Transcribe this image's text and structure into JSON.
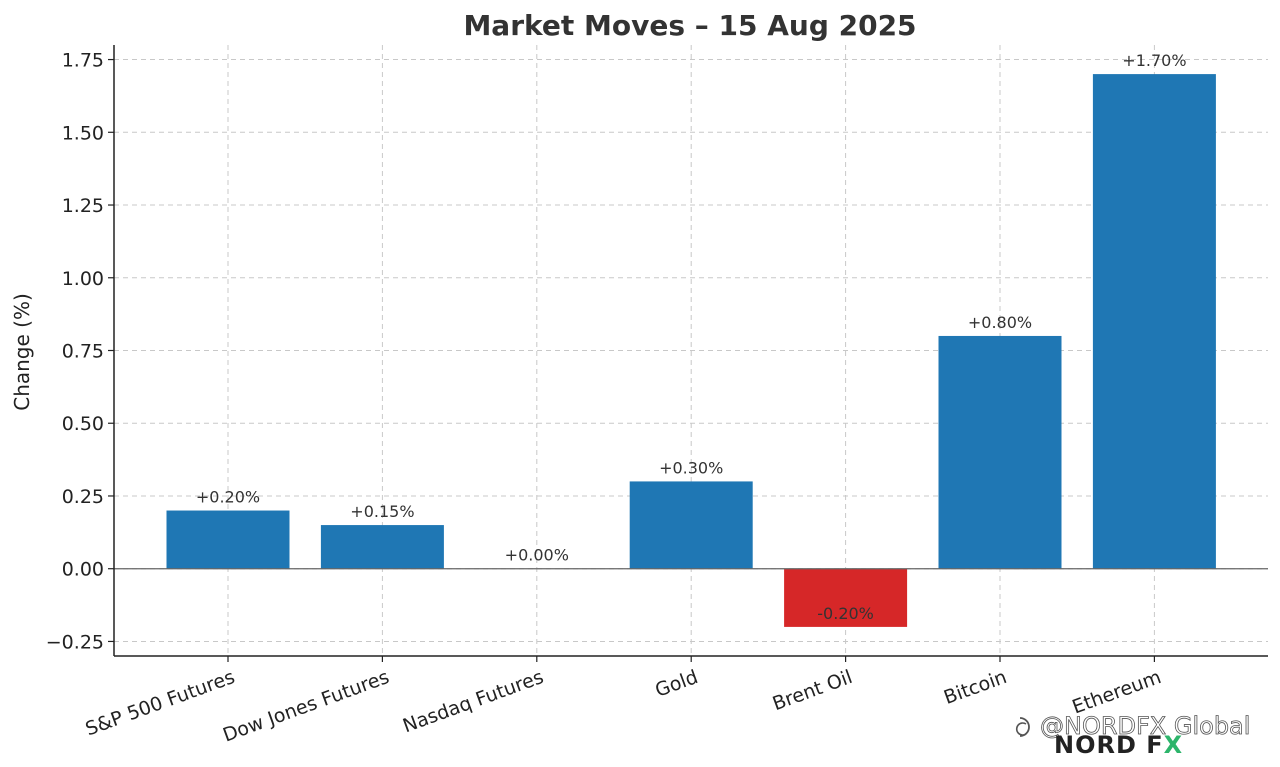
{
  "chart_data": {
    "type": "bar",
    "title": "Market Moves – 15 Aug 2025",
    "xlabel": "",
    "ylabel": "Change (%)",
    "ylim": [
      -0.3,
      1.8
    ],
    "yticks": [
      -0.25,
      0.0,
      0.25,
      0.5,
      0.75,
      1.0,
      1.25,
      1.5,
      1.75
    ],
    "ytick_labels": [
      "−0.25",
      "0.00",
      "0.25",
      "0.50",
      "0.75",
      "1.00",
      "1.25",
      "1.50",
      "1.75"
    ],
    "grid": true,
    "categories": [
      "S&P 500 Futures",
      "Dow Jones Futures",
      "Nasdaq Futures",
      "Gold",
      "Brent Oil",
      "Bitcoin",
      "Ethereum"
    ],
    "values": [
      0.2,
      0.15,
      0.0,
      0.3,
      -0.2,
      0.8,
      1.7
    ],
    "data_labels": [
      "+0.20%",
      "+0.15%",
      "+0.00%",
      "+0.30%",
      "-0.20%",
      "+0.80%",
      "+1.70%"
    ],
    "colors": {
      "positive": "#1f77b4",
      "negative": "#d62728"
    }
  },
  "watermark": {
    "handle": "@NORDFX Global",
    "brand": "NORD FX",
    "brand_part1": "NORD F",
    "brand_part2": "X",
    "brand_color": "#222222",
    "accent_color": "#2db56b"
  }
}
